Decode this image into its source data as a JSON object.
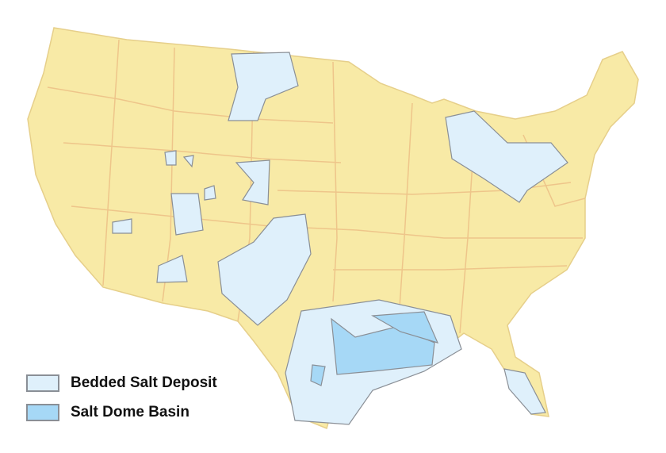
{
  "map": {
    "colors": {
      "land": "#f8eaa6",
      "border": "#eec58a",
      "bedded": "#dff0fb",
      "dome": "#a6d8f6",
      "outline": "#8a8f96"
    }
  },
  "legend": {
    "items": [
      {
        "label": "Bedded Salt Deposit",
        "color": "#dff0fb"
      },
      {
        "label": "Salt Dome Basin",
        "color": "#a6d8f6"
      }
    ]
  }
}
